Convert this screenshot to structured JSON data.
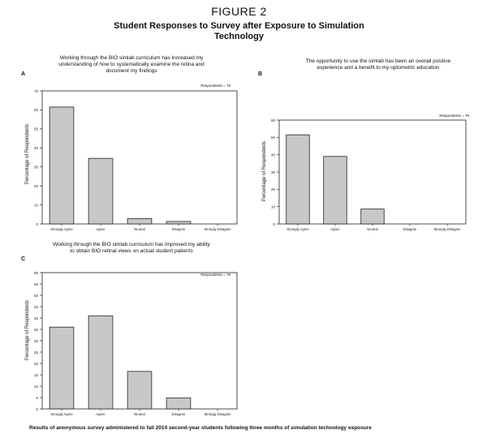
{
  "figure_label": "FIGURE 2",
  "figure_title": "Student Responses to Survey after Exposure to Simulation Technology",
  "caption": "Results of anonymous survey administered to fall 2014 second-year students following three months of simulation technology exposure",
  "colors": {
    "bar_fill": "#c8c8c8",
    "bar_stroke": "#222222",
    "axis": "#222222"
  },
  "chart_data": [
    {
      "type": "bar",
      "panel": "A",
      "title": "Working through the BIO simlab curriculum has increased my understanding of how to systematically examine the retina and document my findings",
      "respondents": "Respondents = 79",
      "xlabel": "",
      "ylabel": "Percentage of Respondents",
      "categories": [
        "Strongly Agree",
        "Agree",
        "Neutral",
        "Disagree",
        "Strongly Disagree"
      ],
      "values": [
        61.5,
        34.5,
        2.8,
        1.3,
        0
      ],
      "ylim": [
        0,
        70
      ],
      "yticks": [
        0,
        10,
        20,
        30,
        40,
        50,
        60,
        70
      ],
      "grid": false,
      "legend": "none"
    },
    {
      "type": "bar",
      "panel": "B",
      "title": "The opportunity to use the simlab has been an overall positive experience and a benefit to my optometric education",
      "respondents": "Respondents = 79",
      "xlabel": "",
      "ylabel": "Percentage of Respondents",
      "categories": [
        "Strongly Agree",
        "Agree",
        "Neutral",
        "Disagree",
        "Strongly Disagree"
      ],
      "values": [
        51.5,
        39,
        8.6,
        0,
        0
      ],
      "ylim": [
        0,
        60
      ],
      "yticks": [
        0,
        10,
        20,
        30,
        40,
        50,
        60
      ],
      "grid": false,
      "legend": "none"
    },
    {
      "type": "bar",
      "panel": "C",
      "title": "Working through the BIO simlab curriculum has improved my ability to obtain BIO retinal views on actual student patients",
      "respondents": "Respondents = 79",
      "xlabel": "",
      "ylabel": "Percentage of Respondents",
      "categories": [
        "Strongly Agree",
        "Agree",
        "Neutral",
        "Disagree",
        "Strongly Disagree"
      ],
      "values": [
        36,
        41,
        16.5,
        4.8,
        0
      ],
      "ylim": [
        0,
        60
      ],
      "yticks": [
        0,
        5,
        10,
        15,
        20,
        25,
        30,
        35,
        40,
        45,
        50,
        55,
        60
      ],
      "grid": false,
      "legend": "none"
    }
  ]
}
